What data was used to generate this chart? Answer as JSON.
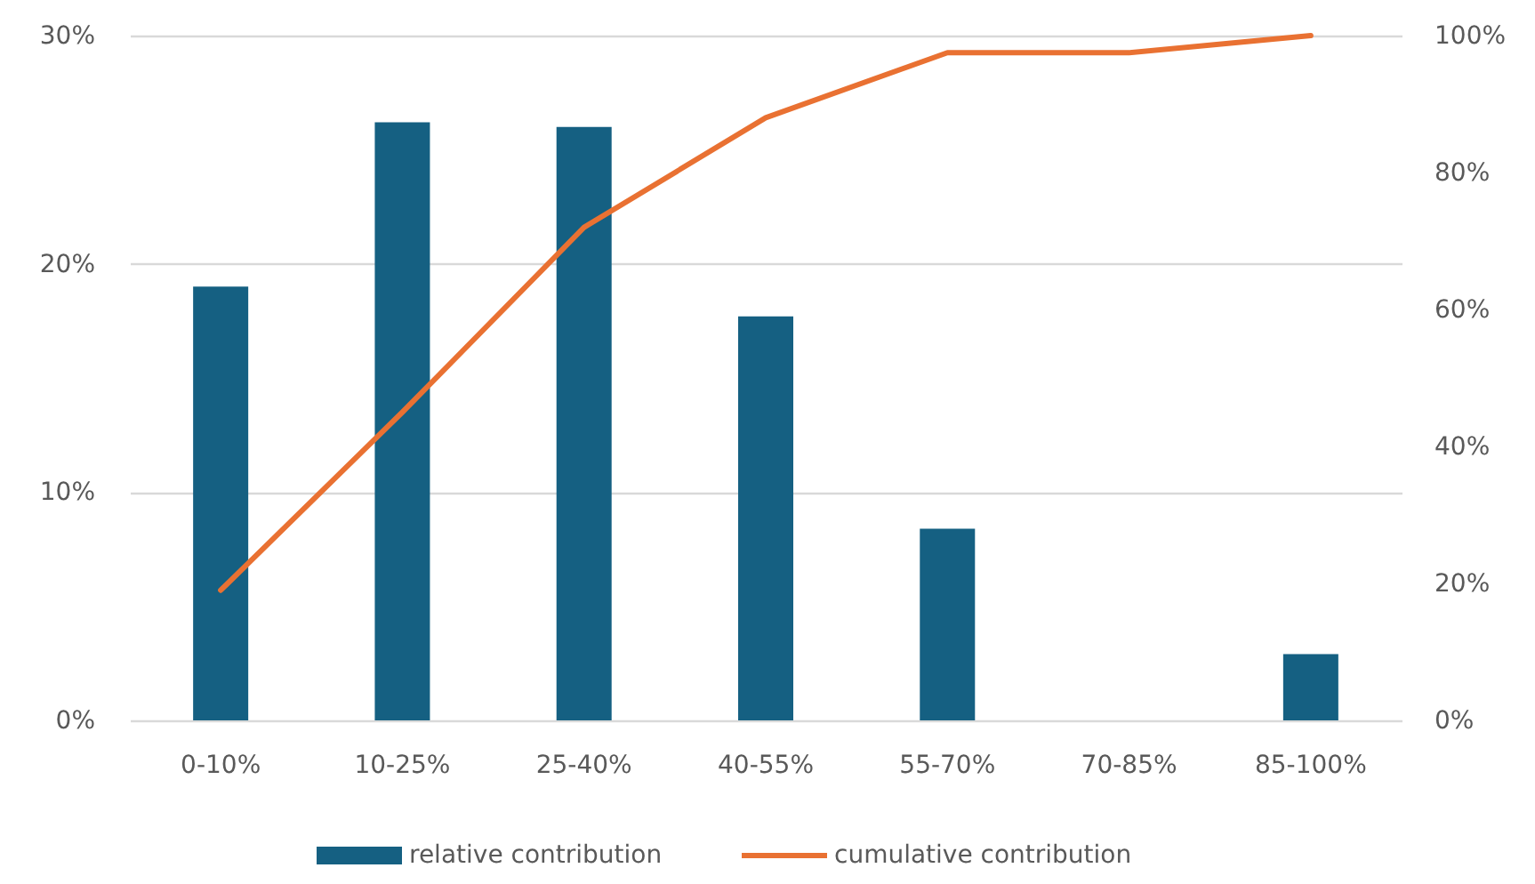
{
  "chart_data": {
    "type": "bar",
    "categories": [
      "0-10%",
      "10-25%",
      "25-40%",
      "40-55%",
      "55-70%",
      "70-85%",
      "85-100%"
    ],
    "series": [
      {
        "name": "relative contribution",
        "color": "#156082",
        "values": [
          19,
          26.2,
          26,
          17.7,
          8.4,
          0,
          2.9
        ]
      },
      {
        "name": "cumulative contribution",
        "type": "line",
        "axis": "y2",
        "color": "#e97132",
        "line_style": "solid",
        "values": [
          19,
          45,
          72,
          88,
          97.5,
          97.5,
          100
        ]
      }
    ],
    "ylim": [
      0,
      30
    ],
    "yticks": [
      {
        "value": 0,
        "label": "0%"
      },
      {
        "value": 10,
        "label": "10%"
      },
      {
        "value": 20,
        "label": "20%"
      },
      {
        "value": 30,
        "label": "30%"
      }
    ],
    "y2lim": [
      0,
      100
    ],
    "y2ticks": [
      {
        "value": 0,
        "label": "0%"
      },
      {
        "value": 20,
        "label": "20%"
      },
      {
        "value": 40,
        "label": "40%"
      },
      {
        "value": 60,
        "label": "60%"
      },
      {
        "value": 80,
        "label": "80%"
      },
      {
        "value": 100,
        "label": "100%"
      }
    ],
    "grid": "y",
    "legend": "bottom"
  }
}
